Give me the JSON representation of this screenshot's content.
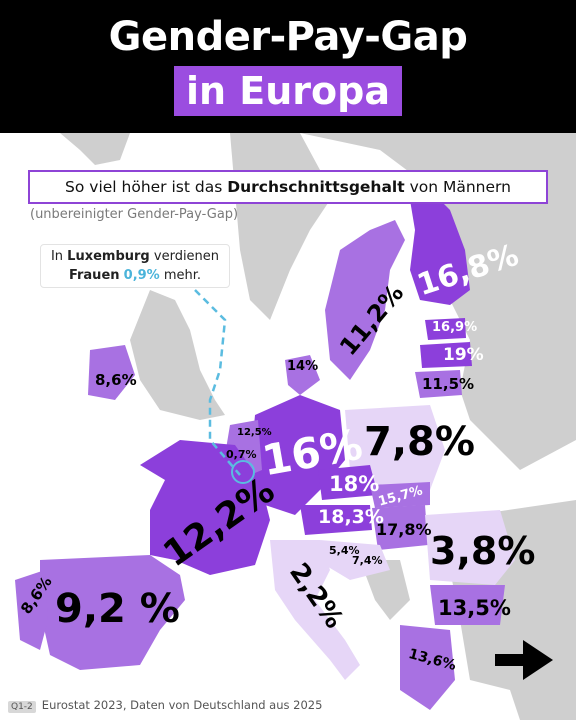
{
  "header": {
    "title_line1": "Gender-Pay-Gap",
    "title_line2": "in Europa"
  },
  "subtitle": {
    "prefix": "So viel höher ist das ",
    "bold": "Durchschnittsgehalt",
    "suffix": " von Männern"
  },
  "note": "(unbereinigter Gender-Pay-Gap)",
  "luxembourg_callout": {
    "part1": "In ",
    "country": "Luxemburg",
    "part2": " verdienen",
    "part3": "Frauen",
    "value": "0,9%",
    "part4": " mehr."
  },
  "countries": {
    "finland": "16,8%",
    "sweden": "11,2%",
    "estonia": "16,9%",
    "latvia": "19%",
    "lithuania": "11,5%",
    "denmark": "14%",
    "ireland": "8,6%",
    "belgium": "0,7%",
    "netherlands": "12,5%",
    "germany": "16%",
    "poland": "7,8%",
    "czechia": "18%",
    "slovakia": "15,7%",
    "austria": "18,3%",
    "hungary": "17,8%",
    "slovenia": "5,4%",
    "croatia": "7,4%",
    "romania": "3,8%",
    "bulgaria": "13,5%",
    "greece": "13,6%",
    "france": "12,2%",
    "spain": "9,2 %",
    "portugal": "8,6%",
    "italy": "2,2%"
  },
  "source": {
    "badge": "Q1-2",
    "text": "Eurostat 2023, Daten von Deutschland aus 2025"
  },
  "colors": {
    "purple_dark": "#8c3fdb",
    "purple_mid": "#a871e2",
    "purple_light": "#c9a6ef",
    "purple_pale": "#e6d6f7",
    "non_eu": "#cfcfcf",
    "sea": "#ffffff"
  },
  "icons": {
    "next": "arrow-right-icon"
  }
}
